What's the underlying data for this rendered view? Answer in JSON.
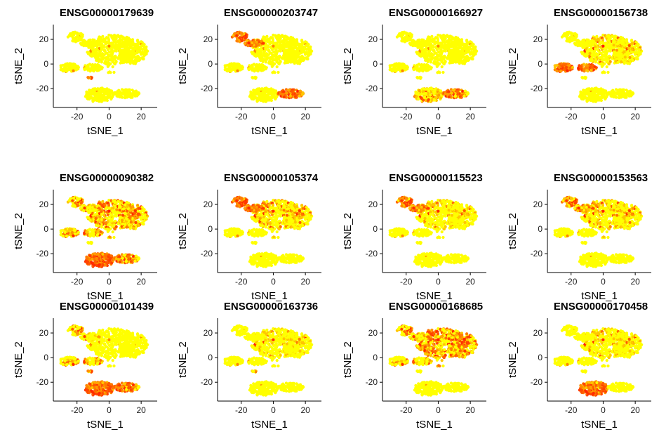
{
  "figure": {
    "palette": {
      "low": "#ffff00",
      "high": "#ff2200"
    }
  },
  "chart_data": [
    {
      "type": "scatter",
      "title": "ENSG00000179639",
      "xlabel": "tSNE_1",
      "ylabel": "tSNE_2",
      "xlim": [
        -33,
        30
      ],
      "ylim": [
        -33,
        32
      ],
      "xticks": [
        -20,
        0,
        20
      ],
      "yticks": [
        20,
        0,
        -20
      ],
      "hot": [
        {
          "cluster": "small-cluster",
          "level": 0.9
        }
      ]
    },
    {
      "type": "scatter",
      "title": "ENSG00000203747",
      "xlabel": "tSNE_1",
      "ylabel": "tSNE_2",
      "xlim": [
        -33,
        30
      ],
      "ylim": [
        -33,
        32
      ],
      "xticks": [
        -20,
        0,
        20
      ],
      "yticks": [
        20,
        0,
        -20
      ],
      "hot": [
        {
          "cluster": "top-left",
          "level": 0.85
        },
        {
          "cluster": "bottom-right",
          "level": 0.9
        }
      ]
    },
    {
      "type": "scatter",
      "title": "ENSG00000166927",
      "xlabel": "tSNE_1",
      "ylabel": "tSNE_2",
      "xlim": [
        -33,
        30
      ],
      "ylim": [
        -33,
        32
      ],
      "xticks": [
        -20,
        0,
        20
      ],
      "yticks": [
        20,
        0,
        -20
      ],
      "hot": [
        {
          "cluster": "bottom-right",
          "level": 0.7
        },
        {
          "cluster": "bottom-left",
          "level": 0.2
        }
      ]
    },
    {
      "type": "scatter",
      "title": "ENSG00000156738",
      "xlabel": "tSNE_1",
      "ylabel": "tSNE_2",
      "xlim": [
        -33,
        30
      ],
      "ylim": [
        -33,
        32
      ],
      "xticks": [
        -20,
        0,
        20
      ],
      "yticks": [
        20,
        0,
        -20
      ],
      "hot": [
        {
          "cluster": "left",
          "level": 0.85
        },
        {
          "cluster": "main",
          "level": 0.1
        }
      ]
    },
    {
      "type": "scatter",
      "title": "ENSG00000090382",
      "xlabel": "tSNE_1",
      "ylabel": "tSNE_2",
      "xlim": [
        -33,
        30
      ],
      "ylim": [
        -33,
        32
      ],
      "xticks": [
        -20,
        0,
        20
      ],
      "yticks": [
        20,
        0,
        -20
      ],
      "hot": [
        {
          "cluster": "bottom-left",
          "level": 0.95
        },
        {
          "cluster": "bottom-right",
          "level": 0.6
        },
        {
          "cluster": "main",
          "level": 0.35
        },
        {
          "cluster": "top-left",
          "level": 0.3
        },
        {
          "cluster": "left",
          "level": 0.3
        }
      ]
    },
    {
      "type": "scatter",
      "title": "ENSG00000105374",
      "xlabel": "tSNE_1",
      "ylabel": "tSNE_2",
      "xlim": [
        -33,
        30
      ],
      "ylim": [
        -33,
        32
      ],
      "xticks": [
        -20,
        0,
        20
      ],
      "yticks": [
        20,
        0,
        -20
      ],
      "hot": [
        {
          "cluster": "top-left",
          "level": 0.95
        },
        {
          "cluster": "main",
          "level": 0.2
        }
      ]
    },
    {
      "type": "scatter",
      "title": "ENSG00000115523",
      "xlabel": "tSNE_1",
      "ylabel": "tSNE_2",
      "xlim": [
        -33,
        30
      ],
      "ylim": [
        -33,
        32
      ],
      "xticks": [
        -20,
        0,
        20
      ],
      "yticks": [
        20,
        0,
        -20
      ],
      "hot": [
        {
          "cluster": "top-left",
          "level": 0.8
        },
        {
          "cluster": "main",
          "level": 0.08
        }
      ]
    },
    {
      "type": "scatter",
      "title": "ENSG00000153563",
      "xlabel": "tSNE_1",
      "ylabel": "tSNE_2",
      "xlim": [
        -33,
        30
      ],
      "ylim": [
        -33,
        32
      ],
      "xticks": [
        -20,
        0,
        20
      ],
      "yticks": [
        20,
        0,
        -20
      ],
      "hot": [
        {
          "cluster": "top-left",
          "level": 0.6
        },
        {
          "cluster": "main",
          "level": 0.15
        }
      ]
    },
    {
      "type": "scatter",
      "title": "ENSG00000101439",
      "xlabel": "tSNE_1",
      "ylabel": "tSNE_2",
      "xlim": [
        -33,
        30
      ],
      "ylim": [
        -33,
        32
      ],
      "xticks": [
        -20,
        0,
        20
      ],
      "yticks": [
        20,
        0,
        -20
      ],
      "hot": [
        {
          "cluster": "bottom-left",
          "level": 0.85
        },
        {
          "cluster": "bottom-right",
          "level": 0.8
        },
        {
          "cluster": "small-cluster",
          "level": 0.8
        },
        {
          "cluster": "left",
          "level": 0.25
        },
        {
          "cluster": "top-left",
          "level": 0.2
        }
      ]
    },
    {
      "type": "scatter",
      "title": "ENSG00000163736",
      "xlabel": "tSNE_1",
      "ylabel": "tSNE_2",
      "xlim": [
        -33,
        30
      ],
      "ylim": [
        -33,
        32
      ],
      "xticks": [
        -20,
        0,
        20
      ],
      "yticks": [
        20,
        0,
        -20
      ],
      "hot": [
        {
          "cluster": "main",
          "level": 0.05
        },
        {
          "cluster": "small-cluster",
          "level": 0.3
        }
      ]
    },
    {
      "type": "scatter",
      "title": "ENSG00000168685",
      "xlabel": "tSNE_1",
      "ylabel": "tSNE_2",
      "xlim": [
        -33,
        30
      ],
      "ylim": [
        -33,
        32
      ],
      "xticks": [
        -20,
        0,
        20
      ],
      "yticks": [
        20,
        0,
        -20
      ],
      "hot": [
        {
          "cluster": "main",
          "level": 0.5
        },
        {
          "cluster": "top-left",
          "level": 0.35
        },
        {
          "cluster": "left",
          "level": 0.15
        }
      ]
    },
    {
      "type": "scatter",
      "title": "ENSG00000170458",
      "xlabel": "tSNE_1",
      "ylabel": "tSNE_2",
      "xlim": [
        -33,
        30
      ],
      "ylim": [
        -33,
        32
      ],
      "xticks": [
        -20,
        0,
        20
      ],
      "yticks": [
        20,
        0,
        -20
      ],
      "hot": [
        {
          "cluster": "bottom-left",
          "level": 0.8
        },
        {
          "cluster": "main",
          "level": 0.08
        }
      ]
    }
  ]
}
